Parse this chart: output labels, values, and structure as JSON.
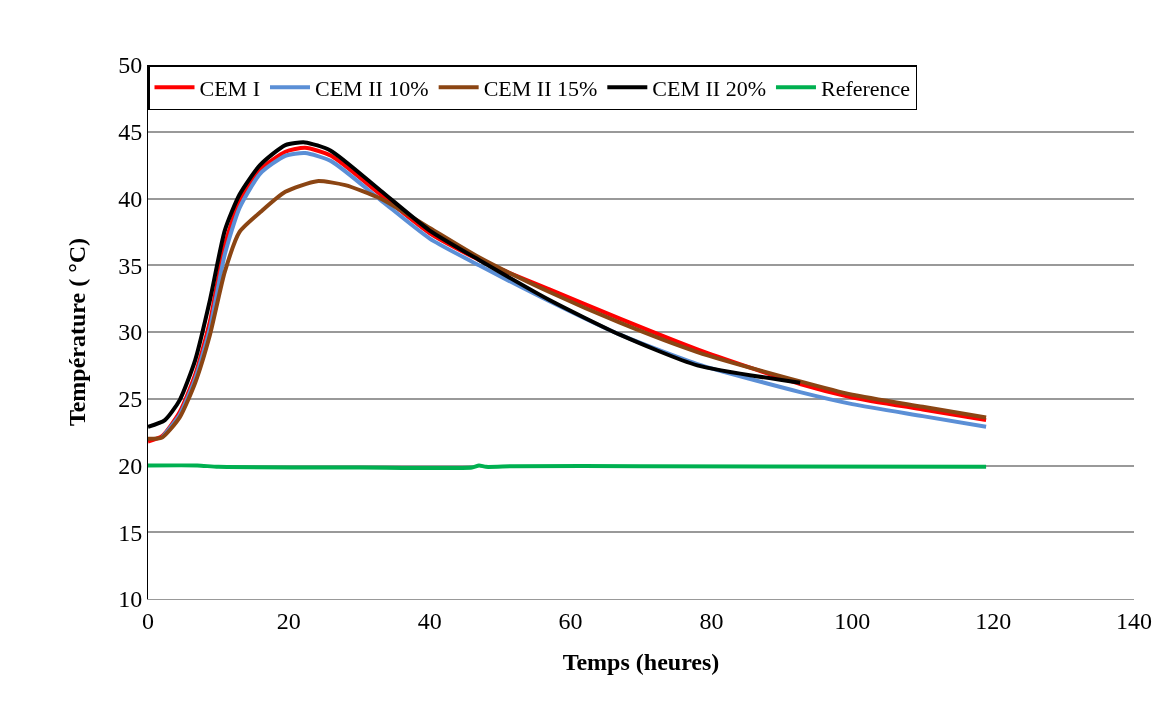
{
  "chart_data": {
    "type": "line",
    "xlabel": "Temps (heures)",
    "ylabel": "Température ( °C)",
    "xlim": [
      0,
      140
    ],
    "xticks": [
      0,
      20,
      40,
      60,
      80,
      100,
      120,
      140
    ],
    "ylim": [
      10,
      50
    ],
    "yticks": [
      10,
      15,
      20,
      25,
      30,
      35,
      40,
      45,
      50
    ],
    "grid": "y",
    "legend": "top",
    "marker": "none",
    "line_style": "solid",
    "series": [
      {
        "name": "CEM I",
        "color": "#ff0000",
        "x": [
          0,
          2,
          4.5,
          6.7,
          8.8,
          10.9,
          13,
          16,
          19.5,
          22.3,
          26,
          33,
          40,
          47,
          57,
          67,
          78,
          92.6,
          100,
          110,
          119
        ],
        "values": [
          21.8,
          22.2,
          24,
          26.8,
          30.8,
          36.5,
          39.8,
          42.2,
          43.5,
          43.8,
          43.2,
          40.3,
          37.4,
          35.4,
          33.2,
          31,
          28.7,
          26.1,
          25.1,
          24.2,
          23.4
        ]
      },
      {
        "name": "CEM II 10%",
        "color": "#5b8fd6",
        "x": [
          2,
          4.5,
          6.7,
          8.8,
          10.9,
          13,
          16,
          19.5,
          22.3,
          26,
          33,
          40,
          47,
          57,
          67,
          78,
          92.6,
          100,
          110,
          119
        ],
        "values": [
          22.1,
          23.8,
          26.5,
          30.3,
          35.8,
          39.3,
          41.9,
          43.2,
          43.4,
          42.8,
          39.9,
          37,
          35,
          32.3,
          29.8,
          27.6,
          25.5,
          24.6,
          23.7,
          22.9
        ]
      },
      {
        "name": "CEM II 15%",
        "color": "#8b4513",
        "x": [
          0,
          2,
          4.5,
          6.7,
          8.8,
          10.9,
          13,
          16,
          19.5,
          24,
          28,
          33,
          40,
          47,
          57,
          67,
          78,
          92.6,
          100,
          110,
          119
        ],
        "values": [
          22,
          22.1,
          23.6,
          26.2,
          29.8,
          34.5,
          37.5,
          39,
          40.5,
          41.3,
          41,
          40,
          37.8,
          35.6,
          33,
          30.7,
          28.5,
          26.3,
          25.3,
          24.4,
          23.6
        ]
      },
      {
        "name": "CEM II 20%",
        "color": "#000000",
        "x": [
          0,
          2.4,
          4.5,
          6.7,
          8.8,
          10.9,
          13,
          15.9,
          19.5,
          22.3,
          25.9,
          33,
          40,
          47,
          57,
          67,
          78,
          92.6
        ],
        "values": [
          22.9,
          23.4,
          24.9,
          27.9,
          32.4,
          37.6,
          40.3,
          42.5,
          44,
          44.2,
          43.6,
          40.6,
          37.6,
          35.4,
          32.4,
          29.8,
          27.5,
          26.2
        ]
      },
      {
        "name": "Reference",
        "color": "#00b050",
        "x": [
          0,
          7,
          10,
          30,
          46,
          47,
          48,
          52,
          70,
          119
        ],
        "values": [
          20,
          20,
          19.9,
          19.85,
          19.85,
          20,
          19.9,
          19.95,
          19.95,
          19.9
        ]
      }
    ]
  }
}
